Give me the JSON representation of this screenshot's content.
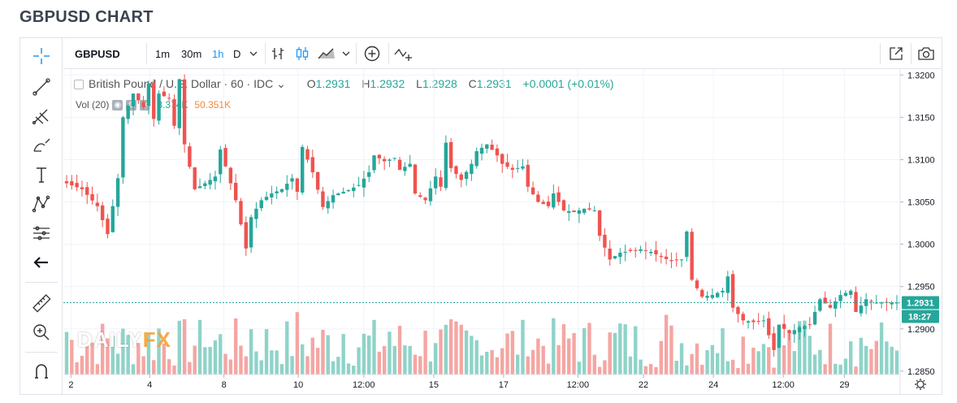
{
  "page": {
    "title": "GBPUSD CHART"
  },
  "toolbar": {
    "symbol": "GBPUSD",
    "intervals": [
      "1m",
      "30m",
      "1h",
      "D"
    ],
    "active_interval": "1h"
  },
  "legend": {
    "instrument": "British Pound / U.S. Dollar · 60 · IDC",
    "open_label": "O",
    "open": "1.2931",
    "high_label": "H",
    "high": "1.2932",
    "low_label": "L",
    "low": "1.2928",
    "close_label": "C",
    "close": "1.2931",
    "change": "+0.0001 (+0.01%)"
  },
  "volume_legend": {
    "label": "Vol (20)",
    "value1": "8.374K",
    "value2": "50.351K"
  },
  "watermark": {
    "brand_part1": "DAILY",
    "brand_part2": "FX"
  },
  "colors": {
    "up": "#26a69a",
    "down": "#ef5350",
    "vol_up": "#8fd3c8",
    "vol_down": "#f4a6a3",
    "last_price": "#26a69a",
    "accent": "#2196f3"
  },
  "icons": {
    "left_toolbar": [
      "crosshair-icon",
      "trend-line-icon",
      "pitchfork-icon",
      "brush-icon",
      "text-icon",
      "pattern-icon",
      "prediction-icon",
      "back-arrow-icon",
      "ruler-icon",
      "zoom-in-icon",
      "magnet-icon"
    ]
  },
  "chart_data": {
    "type": "candlestick",
    "title": "British Pound / U.S. Dollar",
    "y_ticks": [
      "1.3200",
      "1.3150",
      "1.3100",
      "1.3050",
      "1.3000",
      "1.2950",
      "1.2900",
      "1.2850"
    ],
    "ylim": [
      1.2846,
      1.3207
    ],
    "x_ticks": [
      "2",
      "4",
      "8",
      "10",
      "12:00",
      "15",
      "17",
      "12:00",
      "22",
      "24",
      "12:00",
      "29"
    ],
    "last_price_label": "1.2931",
    "last_time_label": "18:27",
    "grid": true,
    "close_path": [
      [
        0,
        1.3072
      ],
      [
        3,
        1.3065
      ],
      [
        6,
        1.3045
      ],
      [
        8,
        1.3012
      ],
      [
        10,
        1.3078
      ],
      [
        11,
        1.315
      ],
      [
        13,
        1.3178
      ],
      [
        15,
        1.3162
      ],
      [
        16,
        1.319
      ],
      [
        17,
        1.3148
      ],
      [
        18,
        1.3178
      ],
      [
        20,
        1.3172
      ],
      [
        21,
        1.314
      ],
      [
        22,
        1.3195
      ],
      [
        23,
        1.3118
      ],
      [
        25,
        1.3065
      ],
      [
        27,
        1.3072
      ],
      [
        29,
        1.308
      ],
      [
        30,
        1.3112
      ],
      [
        33,
        1.3052
      ],
      [
        35,
        1.2995
      ],
      [
        36,
        1.3032
      ],
      [
        38,
        1.3052
      ],
      [
        40,
        1.306
      ],
      [
        42,
        1.3065
      ],
      [
        44,
        1.3078
      ],
      [
        45,
        1.3062
      ],
      [
        46,
        1.3115
      ],
      [
        48,
        1.3085
      ],
      [
        50,
        1.3044
      ],
      [
        52,
        1.3058
      ],
      [
        55,
        1.3064
      ],
      [
        57,
        1.307
      ],
      [
        59,
        1.3085
      ],
      [
        60,
        1.3105
      ],
      [
        62,
        1.3098
      ],
      [
        64,
        1.3102
      ],
      [
        65,
        1.3088
      ],
      [
        67,
        1.3095
      ],
      [
        68,
        1.306
      ],
      [
        70,
        1.3052
      ],
      [
        72,
        1.308
      ],
      [
        73,
        1.3068
      ],
      [
        74,
        1.312
      ],
      [
        75,
        1.309
      ],
      [
        77,
        1.3076
      ],
      [
        79,
        1.3095
      ],
      [
        80,
        1.311
      ],
      [
        82,
        1.3118
      ],
      [
        84,
        1.3105
      ],
      [
        85,
        1.3095
      ],
      [
        87,
        1.3088
      ],
      [
        89,
        1.3092
      ],
      [
        90,
        1.3068
      ],
      [
        92,
        1.305
      ],
      [
        94,
        1.3045
      ],
      [
        95,
        1.306
      ],
      [
        97,
        1.304
      ],
      [
        99,
        1.3038
      ],
      [
        101,
        1.3042
      ],
      [
        103,
        1.304
      ],
      [
        104,
        1.301
      ],
      [
        106,
        1.2982
      ],
      [
        108,
        1.299
      ],
      [
        110,
        1.2992
      ],
      [
        112,
        1.2994
      ],
      [
        114,
        1.2991
      ],
      [
        116,
        1.2985
      ],
      [
        118,
        1.298
      ],
      [
        120,
        1.2982
      ],
      [
        121,
        1.3015
      ],
      [
        122,
        1.2958
      ],
      [
        124,
        1.2938
      ],
      [
        126,
        1.294
      ],
      [
        128,
        1.2945
      ],
      [
        129,
        1.2962
      ],
      [
        130,
        1.2925
      ],
      [
        132,
        1.291
      ],
      [
        134,
        1.2908
      ],
      [
        136,
        1.291
      ],
      [
        138,
        1.2875
      ],
      [
        139,
        1.2905
      ],
      [
        141,
        1.2895
      ],
      [
        143,
        1.2902
      ],
      [
        145,
        1.2905
      ],
      [
        147,
        1.2935
      ],
      [
        149,
        1.2925
      ],
      [
        151,
        1.294
      ],
      [
        153,
        1.2945
      ],
      [
        154,
        1.292
      ],
      [
        156,
        1.2935
      ],
      [
        158,
        1.2931
      ]
    ],
    "volume": {
      "max_label": "50.351K",
      "last": "8.374K"
    }
  }
}
